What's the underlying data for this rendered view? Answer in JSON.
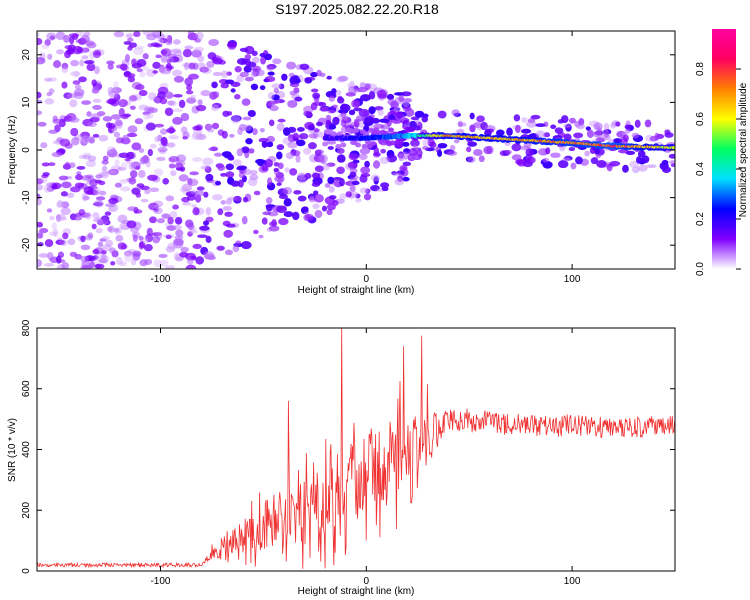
{
  "chart_data": [
    {
      "type": "heatmap",
      "title": "S197.2025.082.22.20.R18",
      "xlabel": "Height of straight line (km)",
      "ylabel": "Frequency (Hz)",
      "xlim": [
        -160,
        150
      ],
      "ylim": [
        -25,
        25
      ],
      "x_ticks": [
        -100,
        0,
        100
      ],
      "x_tick_labels": [
        "-100",
        "0",
        "100"
      ],
      "y_ticks": [
        -20,
        -10,
        0,
        10,
        20
      ],
      "y_tick_labels": [
        "-20",
        "-10",
        "0",
        "10",
        "20"
      ],
      "colorbar": {
        "label": "Normalized spectral amplitude",
        "range": [
          0.0,
          0.96
        ],
        "ticks": [
          0.0,
          0.2,
          0.4,
          0.6,
          0.8
        ],
        "tick_labels": [
          "0.0",
          "0.2",
          "0.4",
          "0.6",
          "0.8"
        ]
      },
      "signal_ridge": {
        "description_points_x_km": [
          -20,
          0,
          20,
          40,
          60,
          80,
          100,
          120,
          150
        ],
        "frequency_hz": [
          2.5,
          2.5,
          3.0,
          3.0,
          2.5,
          2.0,
          1.5,
          0.8,
          0.5
        ],
        "amplitude": [
          0.2,
          0.25,
          0.35,
          0.75,
          0.7,
          0.75,
          0.8,
          0.85,
          0.6
        ]
      },
      "noise_floor_amplitude": 0.15
    },
    {
      "type": "line",
      "xlabel": "Height of straight line (km)",
      "ylabel": "SNR (10 * v/v)",
      "xlim": [
        -160,
        150
      ],
      "ylim": [
        0,
        800
      ],
      "x_ticks": [
        -100,
        0,
        100
      ],
      "x_tick_labels": [
        "-100",
        "0",
        "100"
      ],
      "y_ticks": [
        0,
        200,
        400,
        600,
        800
      ],
      "y_tick_labels": [
        "0",
        "200",
        "400",
        "600",
        "800"
      ],
      "series": [
        {
          "name": "SNR",
          "color": "#f03030",
          "profile_x": [
            -160,
            -80,
            -70,
            -60,
            -40,
            -20,
            0,
            20,
            30,
            40,
            60,
            80,
            100,
            120,
            150
          ],
          "profile_mean": [
            20,
            20,
            80,
            110,
            160,
            240,
            320,
            380,
            440,
            500,
            490,
            480,
            480,
            470,
            480
          ],
          "profile_spread": [
            12,
            12,
            60,
            90,
            150,
            220,
            230,
            220,
            160,
            70,
            70,
            70,
            70,
            60,
            60
          ],
          "peaks": [
            {
              "x": -12,
              "y": 810
            },
            {
              "x": 27,
              "y": 775
            },
            {
              "x": 18,
              "y": 740
            },
            {
              "x": -38,
              "y": 560
            }
          ]
        }
      ]
    }
  ],
  "colors": {
    "line": "#f03030",
    "cmap": [
      "#ffffff",
      "#8000ff",
      "#0000ff",
      "#00e0ff",
      "#00ff60",
      "#ffff00",
      "#ff8000",
      "#ff0060",
      "#ff00a0"
    ]
  }
}
